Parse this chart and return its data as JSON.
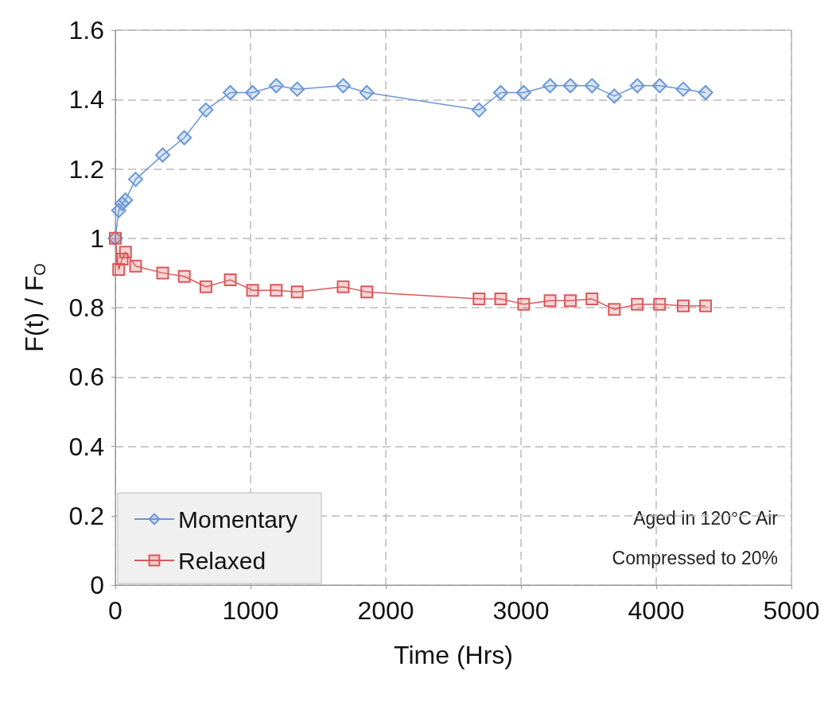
{
  "chart_data": {
    "type": "line",
    "xlabel": "Time (Hrs)",
    "ylabel": "F(t) / F$_{O}$",
    "x": [
      0,
      25,
      50,
      75,
      150,
      350,
      510,
      670,
      850,
      1015,
      1190,
      1345,
      1685,
      1860,
      2690,
      2850,
      3020,
      3215,
      3365,
      3525,
      3690,
      3860,
      4025,
      4200,
      4365
    ],
    "series": [
      {
        "name": "Momentary",
        "color": "#6a97d6",
        "marker": "diamond",
        "values": [
          1.0,
          1.08,
          1.1,
          1.11,
          1.17,
          1.24,
          1.29,
          1.37,
          1.42,
          1.42,
          1.44,
          1.43,
          1.44,
          1.42,
          1.37,
          1.42,
          1.42,
          1.44,
          1.44,
          1.44,
          1.41,
          1.44,
          1.44,
          1.43,
          1.42
        ]
      },
      {
        "name": "Relaxed",
        "color": "#d9595a",
        "marker": "square",
        "values": [
          1.0,
          0.91,
          0.94,
          0.96,
          0.92,
          0.9,
          0.89,
          0.86,
          0.88,
          0.85,
          0.85,
          0.845,
          0.86,
          0.845,
          0.825,
          0.825,
          0.81,
          0.82,
          0.82,
          0.825,
          0.795,
          0.81,
          0.81,
          0.805,
          0.805
        ]
      }
    ],
    "xlim": [
      0,
      5000
    ],
    "xticks": [
      0,
      1000,
      2000,
      3000,
      4000,
      5000
    ],
    "ylim": [
      0,
      1.6
    ],
    "yticks": [
      0,
      0.2,
      0.4,
      0.6,
      0.8,
      1,
      1.2,
      1.4,
      1.6
    ],
    "grid": true,
    "legend": "bottom left",
    "line_style": "solid",
    "annotations": [
      "Aged in 120°C Air",
      "Compressed to 20%"
    ]
  }
}
